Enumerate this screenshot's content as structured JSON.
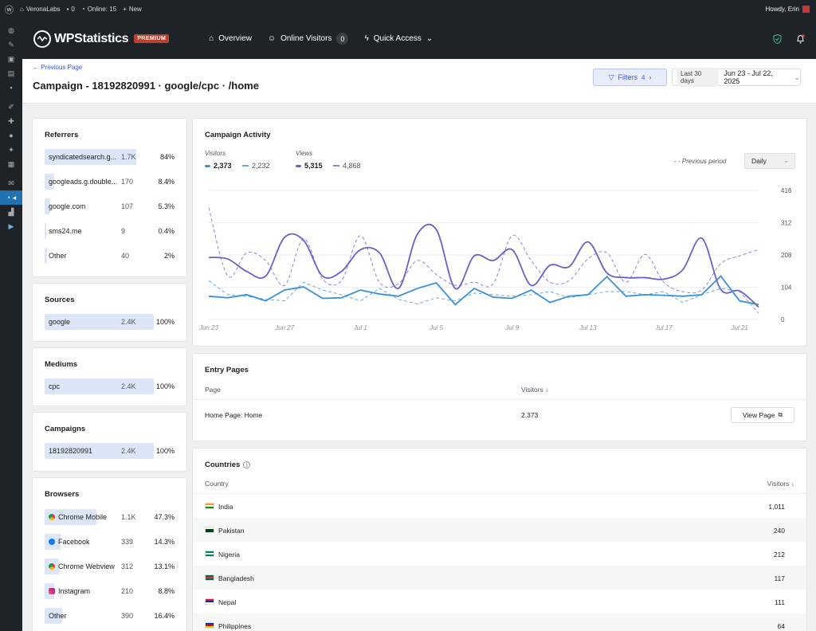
{
  "adminbar": {
    "site": "VeronaLabs",
    "comments": "0",
    "online": "Online: 15",
    "new": "New",
    "howdy": "Howdy, Erin"
  },
  "header": {
    "logo_text": "WPStatistics",
    "badge": "PREMIUM",
    "nav": [
      {
        "label": "Overview"
      },
      {
        "label": "Online Visitors",
        "count": "0"
      },
      {
        "label": "Quick Access"
      }
    ]
  },
  "page": {
    "back": "← Previous Page",
    "title": "Campaign - 18192820991 · google/cpc · /home",
    "filters_label": "Filters",
    "filters_count": "4",
    "date_chip": "Last 30 days",
    "date_range": "Jun 23 - Jul 22, 2025"
  },
  "referrers": {
    "title": "Referrers",
    "rows": [
      {
        "label": "syndicatedsearch.g...",
        "value": "1.7K",
        "pct": "84%",
        "share": 0.84
      },
      {
        "label": "googleads.g.double...",
        "value": "170",
        "pct": "8.4%",
        "share": 0.084
      },
      {
        "label": "google.com",
        "value": "107",
        "pct": "5.3%",
        "share": 0.053
      },
      {
        "label": "sms24.me",
        "value": "9",
        "pct": "0.4%",
        "share": 0.004
      },
      {
        "label": "Other",
        "value": "40",
        "pct": "2%",
        "share": 0.02
      }
    ]
  },
  "sources": {
    "title": "Sources",
    "rows": [
      {
        "label": "google",
        "value": "2.4K",
        "pct": "100%",
        "share": 1
      }
    ]
  },
  "mediums": {
    "title": "Mediums",
    "rows": [
      {
        "label": "cpc",
        "value": "2.4K",
        "pct": "100%",
        "share": 1
      }
    ]
  },
  "campaigns": {
    "title": "Campaigns",
    "rows": [
      {
        "label": "18192820991",
        "value": "2.4K",
        "pct": "100%",
        "share": 1
      }
    ]
  },
  "browsers": {
    "title": "Browsers",
    "rows": [
      {
        "label": "Chrome Mobile",
        "value": "1.1K",
        "pct": "47.3%",
        "share": 0.473,
        "icon": "chrome-icon"
      },
      {
        "label": "Facebook",
        "value": "339",
        "pct": "14.3%",
        "share": 0.143,
        "icon": "facebook-icon"
      },
      {
        "label": "Chrome Webview",
        "value": "312",
        "pct": "13.1%",
        "share": 0.131,
        "icon": "chrome-icon"
      },
      {
        "label": "Instagram",
        "value": "210",
        "pct": "8.8%",
        "share": 0.088,
        "icon": "instagram-icon"
      },
      {
        "label": "Other",
        "value": "390",
        "pct": "16.4%",
        "share": 0.164,
        "icon": ""
      }
    ]
  },
  "activity": {
    "title": "Campaign Activity",
    "visitors_label": "Visitors",
    "views_label": "Views",
    "visitors_current": "2,373",
    "visitors_previous": "2,232",
    "views_current": "5,315",
    "views_previous": "4,868",
    "previous_period_label": "- - Previous period",
    "interval": "Daily"
  },
  "chart_data": {
    "type": "line",
    "title": "Campaign Activity",
    "x": [
      "Jun 23",
      "Jun 24",
      "Jun 25",
      "Jun 26",
      "Jun 27",
      "Jun 28",
      "Jun 29",
      "Jun 30",
      "Jul 1",
      "Jul 2",
      "Jul 3",
      "Jul 4",
      "Jul 5",
      "Jul 6",
      "Jul 7",
      "Jul 8",
      "Jul 9",
      "Jul 10",
      "Jul 11",
      "Jul 12",
      "Jul 13",
      "Jul 14",
      "Jul 15",
      "Jul 16",
      "Jul 17",
      "Jul 18",
      "Jul 19",
      "Jul 20",
      "Jul 21",
      "Jul 22"
    ],
    "xticks": [
      "Jun 23",
      "Jun 27",
      "Jul 1",
      "Jul 5",
      "Jul 9",
      "Jul 13",
      "Jul 17",
      "Jul 21"
    ],
    "yticks": [
      0,
      104,
      208,
      312,
      416
    ],
    "ylim": [
      0,
      416
    ],
    "series": [
      {
        "name": "Views",
        "style": "solid",
        "color": "#6c5fc7",
        "values": [
          200,
          195,
          155,
          140,
          265,
          255,
          140,
          155,
          225,
          215,
          100,
          275,
          290,
          100,
          205,
          190,
          225,
          110,
          175,
          170,
          250,
          150,
          135,
          135,
          130,
          160,
          262,
          97,
          92,
          40
        ]
      },
      {
        "name": "Visitors",
        "style": "solid",
        "color": "#3b91d4",
        "values": [
          75,
          70,
          80,
          60,
          95,
          105,
          68,
          70,
          95,
          82,
          75,
          100,
          118,
          48,
          100,
          72,
          68,
          95,
          55,
          75,
          80,
          138,
          75,
          80,
          78,
          75,
          80,
          140,
          60,
          48
        ]
      },
      {
        "name": "Previous Views",
        "style": "dashed",
        "color": "#8d84d6",
        "values": [
          360,
          140,
          215,
          190,
          110,
          260,
          130,
          125,
          270,
          120,
          115,
          190,
          145,
          110,
          120,
          115,
          270,
          190,
          120,
          125,
          195,
          215,
          120,
          210,
          120,
          90,
          95,
          180,
          205,
          225
        ]
      },
      {
        "name": "Previous Visitors",
        "style": "dashed",
        "color": "#6aa9dd",
        "values": [
          125,
          80,
          75,
          65,
          60,
          120,
          95,
          80,
          60,
          100,
          65,
          50,
          70,
          60,
          85,
          80,
          75,
          80,
          90,
          70,
          80,
          90,
          90,
          80,
          90,
          55,
          80,
          100,
          90,
          20
        ]
      }
    ]
  },
  "entry_pages": {
    "title": "Entry Pages",
    "col_page": "Page",
    "col_visitors": "Visitors ↓",
    "rows": [
      {
        "page": "Home Page: Home",
        "visitors": "2,373",
        "action": "View Page"
      }
    ]
  },
  "countries": {
    "title": "Countries",
    "col_country": "Country",
    "col_visitors": "Visitors ↓",
    "rows": [
      {
        "name": "India",
        "visitors": "1,011",
        "flag_colors": [
          "#ff9933",
          "#ffffff",
          "#138808"
        ]
      },
      {
        "name": "Pakistan",
        "visitors": "240",
        "flag_colors": [
          "#ffffff",
          "#01411c",
          "#01411c"
        ]
      },
      {
        "name": "Nigeria",
        "visitors": "212",
        "flag_colors": [
          "#008751",
          "#ffffff",
          "#008751"
        ]
      },
      {
        "name": "Bangladesh",
        "visitors": "117",
        "flag_colors": [
          "#006a4e",
          "#f42a41",
          "#006a4e"
        ]
      },
      {
        "name": "Nepal",
        "visitors": "111",
        "flag_colors": [
          "#dc143c",
          "#003893",
          "#ffffff"
        ]
      },
      {
        "name": "Philippines",
        "visitors": "64",
        "flag_colors": [
          "#0038a8",
          "#ce1126",
          "#fcd116"
        ]
      }
    ]
  }
}
